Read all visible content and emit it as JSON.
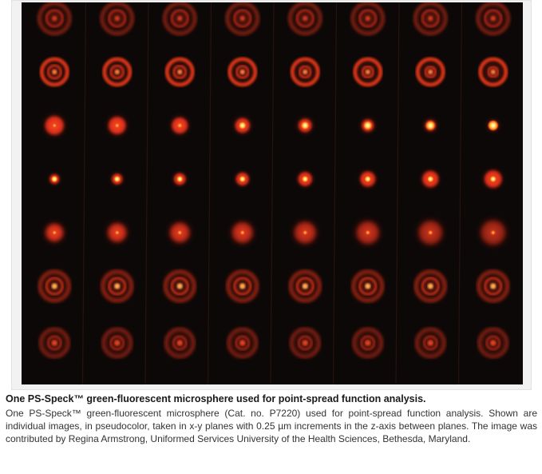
{
  "figure": {
    "image_subject": "pseudocolor-microsphere-psf-montage",
    "grid_columns": 8,
    "grid_rows": 7,
    "colors": {
      "background": "#0b0807",
      "ring": "#c83218",
      "core_hot": "#ffe66b",
      "core_mid": "#ff8a1f"
    }
  },
  "caption": {
    "title": "One PS-Speck™ green-fluorescent microsphere used for point-spread function analysis.",
    "body": "One PS-Speck™ green-fluorescent microsphere (Cat. no. P7220) used for point-spread function analysis. Shown are individual images, in pseudocolor, taken in x-y planes with 0.25 µm increments in the z-axis between planes. The image was contributed by Regina Armstrong, Uniformed Services University of the Health Sciences, Bethesda, Maryland."
  }
}
